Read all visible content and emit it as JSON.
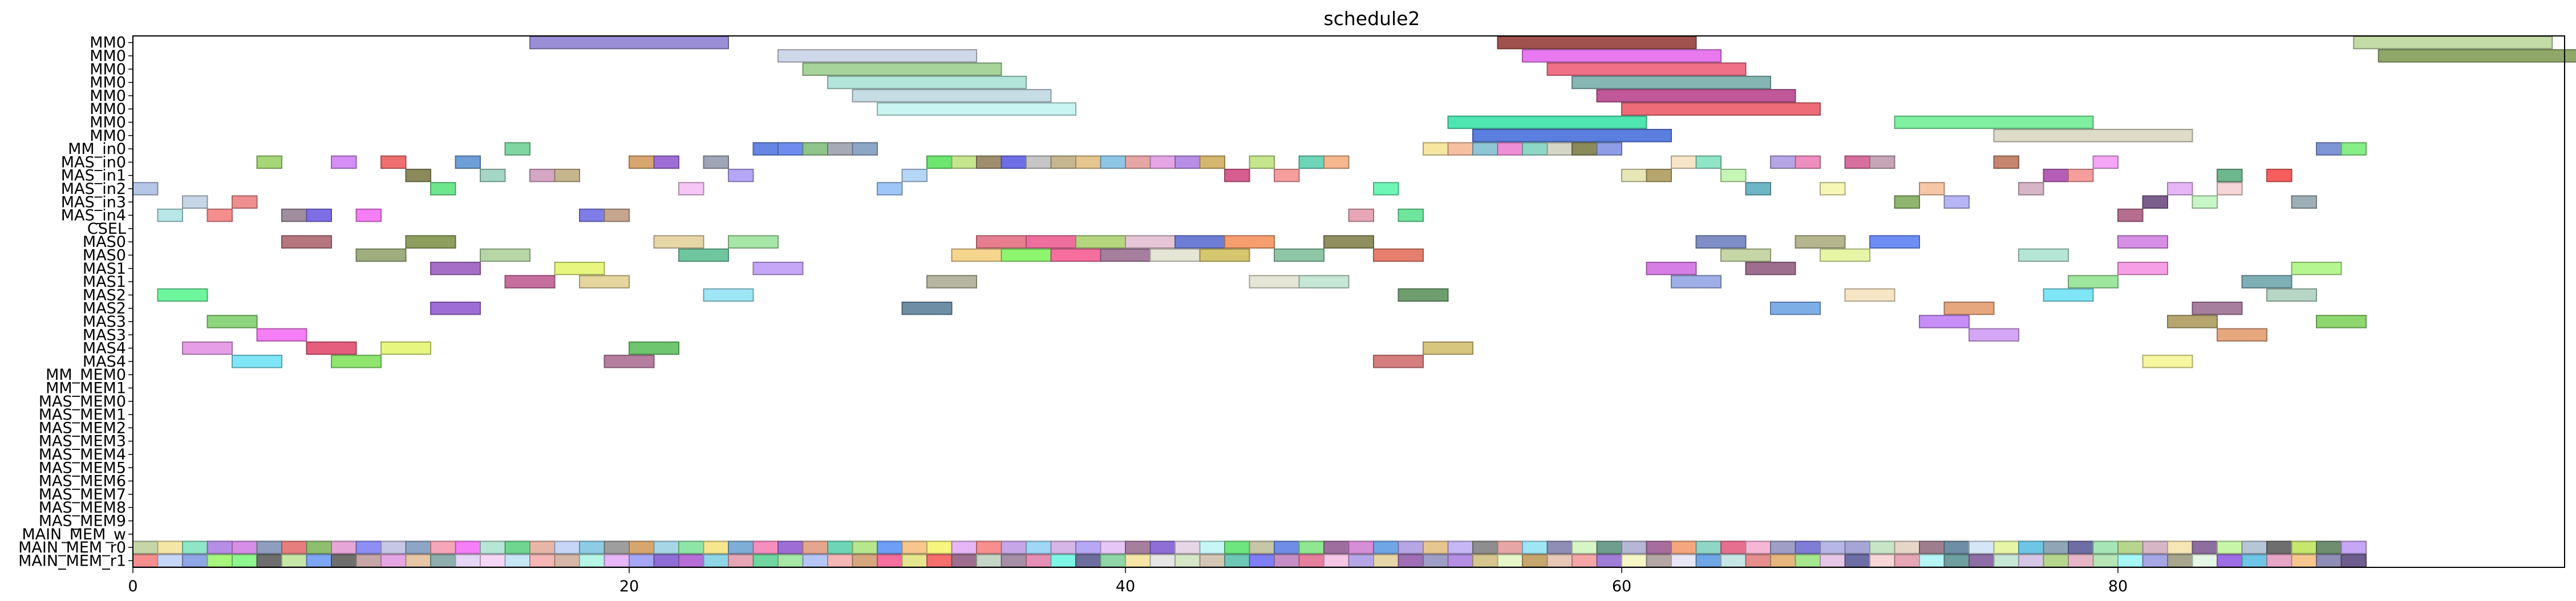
{
  "chart_data": {
    "type": "gantt",
    "title": "schedule2",
    "xlabel": "",
    "ylabel": "",
    "xlim": [
      0,
      98
    ],
    "xticks": [
      0,
      20,
      40,
      60,
      80
    ],
    "rows": [
      "MM0",
      "MM0",
      "MM0",
      "MM0",
      "MM0",
      "MM0",
      "MM0",
      "MM0",
      "MM_in0",
      "MAS_in0",
      "MAS_in1",
      "MAS_in2",
      "MAS_in3",
      "MAS_in4",
      "CSEL",
      "MAS0",
      "MAS0",
      "MAS1",
      "MAS1",
      "MAS2",
      "MAS2",
      "MAS3",
      "MAS3",
      "MAS4",
      "MAS4",
      "MM_MEM0",
      "MM_MEM1",
      "MAS_MEM0",
      "MAS_MEM1",
      "MAS_MEM2",
      "MAS_MEM3",
      "MAS_MEM4",
      "MAS_MEM5",
      "MAS_MEM6",
      "MAS_MEM7",
      "MAS_MEM8",
      "MAS_MEM9",
      "MAIN_MEM_w",
      "MAIN_MEM_r0",
      "MAIN_MEM_r1"
    ],
    "tasks": [
      [
        0,
        16,
        24,
        "#9a8fd6"
      ],
      [
        0,
        55,
        63,
        "#a0524e"
      ],
      [
        0,
        89.5,
        97.5,
        "#c3dca6"
      ],
      [
        1,
        26,
        34,
        "#cfd8e8"
      ],
      [
        1,
        56,
        64,
        "#e879f0"
      ],
      [
        1,
        90.5,
        98.5,
        "#8fa86a"
      ],
      [
        2,
        27,
        35,
        "#a6d49a"
      ],
      [
        2,
        57,
        65,
        "#ef6f86"
      ],
      [
        3,
        28,
        36,
        "#b3e6da"
      ],
      [
        3,
        58,
        66,
        "#86b6b4"
      ],
      [
        4,
        29,
        37,
        "#c6dde6"
      ],
      [
        4,
        59,
        67,
        "#c0589a"
      ],
      [
        5,
        30,
        38,
        "#c8f4f1"
      ],
      [
        5,
        60,
        68,
        "#ee6b78"
      ],
      [
        6,
        53,
        61,
        "#4fe6b2"
      ],
      [
        6,
        71,
        79,
        "#7ef0a0"
      ],
      [
        7,
        54,
        62,
        "#5a7fe0"
      ],
      [
        7,
        75,
        83,
        "#dcdcc8"
      ],
      [
        8,
        15,
        16,
        "#7fd6a0"
      ],
      [
        8,
        25,
        26,
        "#6686e6"
      ],
      [
        8,
        26,
        27,
        "#6e8cf0"
      ],
      [
        8,
        27,
        28,
        "#8ec48a"
      ],
      [
        8,
        28,
        29,
        "#a6aab6"
      ],
      [
        8,
        29,
        30,
        "#8ea6c6"
      ],
      [
        8,
        52,
        53,
        "#f6e6a0"
      ],
      [
        8,
        53,
        54,
        "#f6c0a0"
      ],
      [
        8,
        54,
        55,
        "#8ec6d6"
      ],
      [
        8,
        55,
        56,
        "#ee8ed6"
      ],
      [
        8,
        56,
        57,
        "#8ed6c6"
      ],
      [
        8,
        57,
        58,
        "#d6d6c6"
      ],
      [
        8,
        58,
        59,
        "#8a8a5a"
      ],
      [
        8,
        59,
        60,
        "#8e9ee6"
      ],
      [
        8,
        88,
        89,
        "#7e96d6"
      ],
      [
        8,
        89,
        90,
        "#86ee86"
      ],
      [
        9,
        5,
        6,
        "#a6d676"
      ],
      [
        9,
        8,
        9,
        "#d68ef6"
      ],
      [
        9,
        10,
        11,
        "#ee6e6e"
      ],
      [
        9,
        13,
        14,
        "#6e9ed6"
      ],
      [
        9,
        20,
        21,
        "#d6a66e"
      ],
      [
        9,
        21,
        22,
        "#9e6ed6"
      ],
      [
        9,
        23,
        24,
        "#9ea6b6"
      ],
      [
        9,
        32,
        33,
        "#6ee66e"
      ],
      [
        9,
        33,
        34,
        "#c6e68e"
      ],
      [
        9,
        34,
        35,
        "#9e8e6e"
      ],
      [
        9,
        35,
        36,
        "#6e6ee6"
      ],
      [
        9,
        36,
        37,
        "#c6c6c6"
      ],
      [
        9,
        37,
        38,
        "#c6b68e"
      ],
      [
        9,
        38,
        39,
        "#e6c68e"
      ],
      [
        9,
        39,
        40,
        "#8ec6e6"
      ],
      [
        9,
        40,
        41,
        "#e6a6a6"
      ],
      [
        9,
        41,
        42,
        "#e6a6e6"
      ],
      [
        9,
        42,
        43,
        "#b68ee6"
      ],
      [
        9,
        43,
        44,
        "#d6b66e"
      ],
      [
        9,
        45,
        46,
        "#c6e68e"
      ],
      [
        9,
        47,
        48,
        "#6ed6b6"
      ],
      [
        9,
        48,
        49,
        "#f6b68e"
      ],
      [
        9,
        62,
        63,
        "#f6e6c6"
      ],
      [
        9,
        63,
        64,
        "#8ee6c6"
      ],
      [
        9,
        66,
        67,
        "#b6a6e6"
      ],
      [
        9,
        67,
        68,
        "#ee8ebe"
      ],
      [
        9,
        69,
        70,
        "#d66e9e"
      ],
      [
        9,
        70,
        71,
        "#c6a6b6"
      ],
      [
        9,
        75,
        76,
        "#c6866e"
      ],
      [
        9,
        79,
        80,
        "#f6a6f6"
      ],
      [
        10,
        11,
        12,
        "#8a8a5a"
      ],
      [
        10,
        14,
        15,
        "#a6d6c6"
      ],
      [
        10,
        16,
        17,
        "#d6a6c6"
      ],
      [
        10,
        17,
        18,
        "#c6b68e"
      ],
      [
        10,
        24,
        25,
        "#b6a6f6"
      ],
      [
        10,
        31,
        32,
        "#b6d6f6"
      ],
      [
        10,
        44,
        45,
        "#d65e8e"
      ],
      [
        10,
        46,
        47,
        "#f69e9e"
      ],
      [
        10,
        60,
        61,
        "#e6e6b6"
      ],
      [
        10,
        61,
        62,
        "#b6a66e"
      ],
      [
        10,
        64,
        65,
        "#c6f6b6"
      ],
      [
        10,
        77,
        78,
        "#b65eb6"
      ],
      [
        10,
        78,
        79,
        "#f69e9e"
      ],
      [
        10,
        84,
        85,
        "#6eb68e"
      ],
      [
        10,
        86,
        87,
        "#f65e5e"
      ],
      [
        11,
        0,
        1,
        "#b6c6e6"
      ],
      [
        11,
        12,
        13,
        "#6ee68e"
      ],
      [
        11,
        22,
        23,
        "#f6c6f6"
      ],
      [
        11,
        30,
        31,
        "#9ec6f6"
      ],
      [
        11,
        50,
        51,
        "#6ef6b6"
      ],
      [
        11,
        65,
        66,
        "#6eb6c6"
      ],
      [
        11,
        68,
        69,
        "#f6f6b6"
      ],
      [
        11,
        72,
        73,
        "#f6c6a6"
      ],
      [
        11,
        76,
        77,
        "#d6b6c6"
      ],
      [
        11,
        82,
        83,
        "#e6b6f6"
      ],
      [
        11,
        84,
        85,
        "#f6d6d6"
      ],
      [
        12,
        2,
        3,
        "#c6d6e6"
      ],
      [
        12,
        4,
        5,
        "#ee8e8e"
      ],
      [
        12,
        71,
        72,
        "#8eb66e"
      ],
      [
        12,
        73,
        74,
        "#b6b6f6"
      ],
      [
        12,
        81,
        82,
        "#7e5e8e"
      ],
      [
        12,
        83,
        84,
        "#c6f6c6"
      ],
      [
        12,
        87,
        88,
        "#9eaeb6"
      ],
      [
        13,
        1,
        2,
        "#b6e6e6"
      ],
      [
        13,
        3,
        4,
        "#f68e8e"
      ],
      [
        13,
        6,
        7,
        "#9e8e9e"
      ],
      [
        13,
        7,
        8,
        "#7e6ee6"
      ],
      [
        13,
        9,
        10,
        "#f67ef6"
      ],
      [
        13,
        18,
        19,
        "#7e7ee6"
      ],
      [
        13,
        19,
        20,
        "#c6a68e"
      ],
      [
        13,
        49,
        50,
        "#e6a6b6"
      ],
      [
        13,
        51,
        52,
        "#6ee69e"
      ],
      [
        13,
        80,
        81,
        "#b66e8e"
      ],
      [
        15,
        6,
        8,
        "#b6767e"
      ],
      [
        15,
        11,
        13,
        "#8e9e5e"
      ],
      [
        15,
        21,
        23,
        "#e6d6a6"
      ],
      [
        15,
        24,
        26,
        "#a6e6a6"
      ],
      [
        15,
        34,
        36,
        "#e67e8e"
      ],
      [
        15,
        36,
        38,
        "#ee6e9e"
      ],
      [
        15,
        38,
        40,
        "#b6d67e"
      ],
      [
        15,
        40,
        42,
        "#e6c6d6"
      ],
      [
        15,
        42,
        44,
        "#6e7ed6"
      ],
      [
        15,
        44,
        46,
        "#f69e6e"
      ],
      [
        15,
        48,
        50,
        "#8e8e5e"
      ],
      [
        15,
        63,
        65,
        "#7e8ec6"
      ],
      [
        15,
        67,
        69,
        "#b6b68e"
      ],
      [
        15,
        70,
        72,
        "#6e8ef6"
      ],
      [
        15,
        80,
        82,
        "#d68ee6"
      ],
      [
        16,
        9,
        11,
        "#9eae7e"
      ],
      [
        16,
        14,
        16,
        "#b6d6a6"
      ],
      [
        16,
        22,
        24,
        "#6ec69e"
      ],
      [
        16,
        33,
        35,
        "#f6d68e"
      ],
      [
        16,
        35,
        37,
        "#8ef66e"
      ],
      [
        16,
        37,
        39,
        "#f66e9e"
      ],
      [
        16,
        39,
        41,
        "#a67e9e"
      ],
      [
        16,
        41,
        43,
        "#e6e6d6"
      ],
      [
        16,
        43,
        45,
        "#d6c66e"
      ],
      [
        16,
        46,
        48,
        "#8ec6a6"
      ],
      [
        16,
        50,
        52,
        "#e67e6e"
      ],
      [
        16,
        64,
        66,
        "#c6d6a6"
      ],
      [
        16,
        68,
        70,
        "#e6f6a6"
      ],
      [
        16,
        76,
        78,
        "#b6e6d6"
      ],
      [
        17,
        12,
        14,
        "#a66ec6"
      ],
      [
        17,
        17,
        19,
        "#e6f67e"
      ],
      [
        17,
        25,
        27,
        "#c6a6f6"
      ],
      [
        17,
        61,
        63,
        "#d67ee6"
      ],
      [
        17,
        65,
        67,
        "#9e6e8e"
      ],
      [
        17,
        80,
        82,
        "#f69ee6"
      ],
      [
        17,
        87,
        89,
        "#b6f68e"
      ],
      [
        18,
        15,
        17,
        "#c66e9e"
      ],
      [
        18,
        18,
        20,
        "#e6d69e"
      ],
      [
        18,
        32,
        34,
        "#b6b69e"
      ],
      [
        18,
        45,
        47,
        "#e6e6d6"
      ],
      [
        18,
        47,
        49,
        "#c6e6d6"
      ],
      [
        18,
        62,
        64,
        "#9eaee6"
      ],
      [
        18,
        78,
        80,
        "#9ee69e"
      ],
      [
        18,
        85,
        87,
        "#7eaeb6"
      ],
      [
        19,
        1,
        3,
        "#6ef69e"
      ],
      [
        19,
        23,
        25,
        "#9ee6f6"
      ],
      [
        19,
        51,
        53,
        "#6e9e6e"
      ],
      [
        19,
        69,
        71,
        "#f6e6c6"
      ],
      [
        19,
        77,
        79,
        "#7ee6f6"
      ],
      [
        19,
        86,
        88,
        "#b6d6c6"
      ],
      [
        20,
        12,
        14,
        "#9e6ed6"
      ],
      [
        20,
        31,
        33,
        "#6e8ea6"
      ],
      [
        20,
        66,
        68,
        "#7eaee6"
      ],
      [
        20,
        73,
        75,
        "#e6a67e"
      ],
      [
        20,
        83,
        85,
        "#a67e9e"
      ],
      [
        21,
        3,
        5,
        "#8ed67e"
      ],
      [
        21,
        72,
        74,
        "#c68ef6"
      ],
      [
        21,
        82,
        84,
        "#b6a66e"
      ],
      [
        21,
        88,
        90,
        "#8ed66e"
      ],
      [
        22,
        5,
        7,
        "#f67ef6"
      ],
      [
        22,
        74,
        76,
        "#d6a6f6"
      ],
      [
        22,
        84,
        86,
        "#e6a67e"
      ],
      [
        23,
        2,
        4,
        "#e69ee6"
      ],
      [
        23,
        7,
        9,
        "#e65e7e"
      ],
      [
        23,
        10,
        12,
        "#e6f67e"
      ],
      [
        23,
        20,
        22,
        "#6ec66e"
      ],
      [
        23,
        52,
        54,
        "#d6c67e"
      ],
      [
        24,
        4,
        6,
        "#7ee6f6"
      ],
      [
        24,
        8,
        10,
        "#8ee66e"
      ],
      [
        24,
        19,
        21,
        "#b67e9e"
      ],
      [
        24,
        50,
        52,
        "#d67e7e"
      ],
      [
        24,
        81,
        83,
        "#f6f69e"
      ]
    ],
    "bottom_row_colors": {
      "MAIN_MEM_r0": [
        "#c6d6a6",
        "#f6e6a6",
        "#8ee6c6",
        "#b68ee6",
        "#d68ee6",
        "#8e9ebe",
        "#e67e7e",
        "#8ebe6e",
        "#e6a6d6",
        "#8e8ef6",
        "#c6c6e6",
        "#8ea6c6",
        "#f6a6b6",
        "#f67ef6",
        "#b6e6d6",
        "#6ed68e",
        "#e6b6a6",
        "#c6d6f6",
        "#8ecce6",
        "#9e9e9e",
        "#d6a66e",
        "#a6d6e6",
        "#8ee6a6",
        "#f6e68e",
        "#7eaed6",
        "#f68ebe",
        "#9e6ed6",
        "#e6a68e",
        "#6ed6b6",
        "#b6e68e",
        "#6e9ef6",
        "#f6c68e",
        "#f6f67e",
        "#e6b6f6",
        "#f68e8e",
        "#c6a6e6",
        "#9ed6f6",
        "#d6b6e6",
        "#b6a6f6",
        "#e6c6f6",
        "#a67e9e",
        "#8e6ed6",
        "#e6d6e6",
        "#c6f6f6",
        "#6ee67e",
        "#c6c6a6",
        "#6e8ee6",
        "#8ee68e",
        "#9e6e9e",
        "#d68ed6",
        "#6ea6e6",
        "#b6a6e6",
        "#e6c68e",
        "#c6b6f6",
        "#8e8e8e",
        "#e6a6a6",
        "#9ee6f6",
        "#8e8eb6",
        "#d6f6c6",
        "#6e9e8e",
        "#b6b6d6",
        "#a66e9e",
        "#f6a67e",
        "#8ed6c6",
        "#e66e8e",
        "#f6b6d6",
        "#9e9ec6",
        "#7e7ed6",
        "#b6b6e6",
        "#a6a6d6",
        "#c6e6c6",
        "#e6d6c6",
        "#9e7e8e",
        "#6e8ea6",
        "#d6e6f6",
        "#e6f6a6",
        "#6ec6e6",
        "#8ea6b6",
        "#6e6ea6",
        "#a6e6b6",
        "#b6d68e",
        "#d6b6c6",
        "#f6e6b6",
        "#8e6e9e",
        "#c6f6a6",
        "#b6c6d6",
        "#6e6e6e",
        "#c6e66e",
        "#6e8e6e",
        "#c6a6f6"
      ],
      "MAIN_MEM_r1": [
        "#f68e8e",
        "#c6d6f6",
        "#8ea6e6",
        "#a6f67e",
        "#8ef68e",
        "#6e6e6e",
        "#c6e6a6",
        "#7ea6f6",
        "#6e6e6e",
        "#c6a6a6",
        "#e6a6e6",
        "#e6c6a6",
        "#8eaeae",
        "#e6d6f6",
        "#f6d6f6",
        "#c6e6f6",
        "#f6b6b6",
        "#d6b6a6",
        "#b6f6e6",
        "#e6b6f6",
        "#a6a6f6",
        "#8e6ed6",
        "#b66ed6",
        "#8ed6e6",
        "#e6a6b6",
        "#6ed69e",
        "#a6e6a6",
        "#b6c6f6",
        "#f6b6b6",
        "#d6a67e",
        "#f66e9e",
        "#e6e68e",
        "#f66e6e",
        "#9e6e8e",
        "#c6d6c6",
        "#a68ea6",
        "#e68eb6",
        "#7ef6e6",
        "#6e6e9e",
        "#8ed6a6",
        "#f6e6a6",
        "#e6e6e6",
        "#d6e6c6",
        "#d6c6b6",
        "#6ec6b6",
        "#7e7ef6",
        "#c68ec6",
        "#e67e9e",
        "#f6c6e6",
        "#b6a6e6",
        "#e6d6a6",
        "#9e6eb6",
        "#9e9ec6",
        "#b68ee6",
        "#d6c68e",
        "#e6f6c6",
        "#c6a66e",
        "#e6c6b6",
        "#f6a6a6",
        "#9e7ed6",
        "#f6f6c6",
        "#b6a6a6",
        "#e6e6f6",
        "#6ea6e6",
        "#c6e6e6",
        "#e68e8e",
        "#e6b67e",
        "#a6e68e",
        "#e6c6e6",
        "#6e6ea6",
        "#f6d6d6",
        "#e6a6b6",
        "#b6f6f6",
        "#6e9e9e",
        "#8e6ea6",
        "#c6e6d6",
        "#d6c6e6",
        "#b6d68e",
        "#e6b6c6",
        "#b6e6b6",
        "#a6f6f6",
        "#a6a6e6",
        "#a6a68e",
        "#e6f6e6",
        "#9e6ee6",
        "#6ec6e6",
        "#e6a6c6",
        "#f6c68e",
        "#8e8eb6",
        "#6e5e8e"
      ]
    }
  }
}
